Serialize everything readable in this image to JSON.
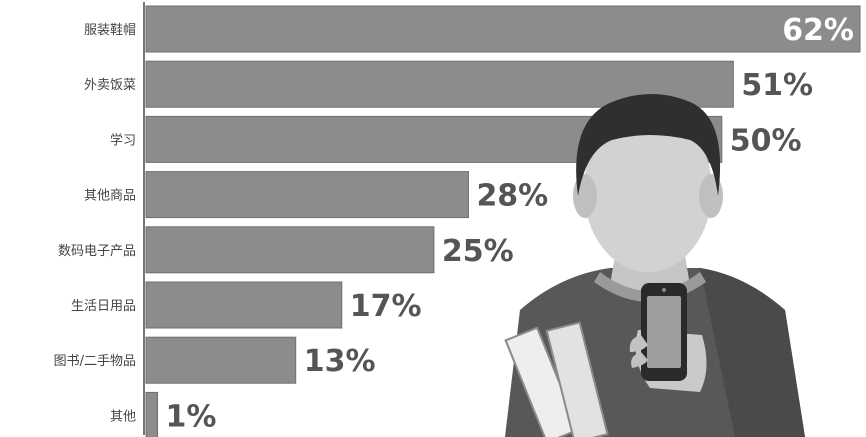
{
  "chart_data": {
    "type": "bar",
    "orientation": "horizontal",
    "categories": [
      "服装鞋帽",
      "外卖饭菜",
      "学习",
      "其他商品",
      "数码电子产品",
      "生活日用品",
      "图书/二手物品",
      "其他"
    ],
    "values": [
      62,
      51,
      50,
      28,
      25,
      17,
      13,
      1
    ],
    "value_labels": [
      "62%",
      "51%",
      "50%",
      "28%",
      "25%",
      "17%",
      "13%",
      "1%"
    ],
    "xlim": [
      0,
      62
    ],
    "grid": false,
    "legend": "none",
    "colors": {
      "bar": "#8c8c8c",
      "bar_edge": "#6f6f6f",
      "label": "#555555"
    }
  },
  "illustration": {
    "icon": "student-with-phone-icon"
  }
}
